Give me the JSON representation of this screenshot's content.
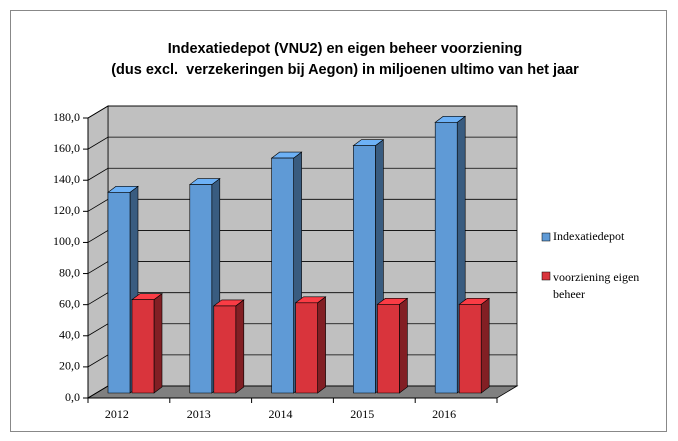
{
  "chart_data": {
    "type": "bar3d",
    "title": [
      "Indexatiedepot (VNU2) en eigen beheer voorziening",
      "(dus excl.  verzekeringen bij Aegon) in miljoenen ultimo van het jaar"
    ],
    "categories": [
      "2012",
      "2013",
      "2014",
      "2015",
      "2016"
    ],
    "series": [
      {
        "name": "Indexatiedepot",
        "color": "#5f9ad6",
        "values": [
          129,
          134,
          151,
          159,
          174
        ]
      },
      {
        "name": "voorziening eigen beheer",
        "color": "#d9343c",
        "values": [
          60,
          56,
          58,
          57,
          57
        ]
      }
    ],
    "ylim": [
      0,
      180
    ],
    "yticks": [
      {
        "value": 0,
        "label": "0,0"
      },
      {
        "value": 20,
        "label": "20,0"
      },
      {
        "value": 40,
        "label": "40,0"
      },
      {
        "value": 60,
        "label": "60,0"
      },
      {
        "value": 80,
        "label": "80,0"
      },
      {
        "value": 100,
        "label": "100,0"
      },
      {
        "value": 120,
        "label": "120,0"
      },
      {
        "value": 140,
        "label": "140,0"
      },
      {
        "value": 160,
        "label": "160,0"
      },
      {
        "value": 180,
        "label": "180,0"
      }
    ],
    "grid": true,
    "legend": "right"
  }
}
